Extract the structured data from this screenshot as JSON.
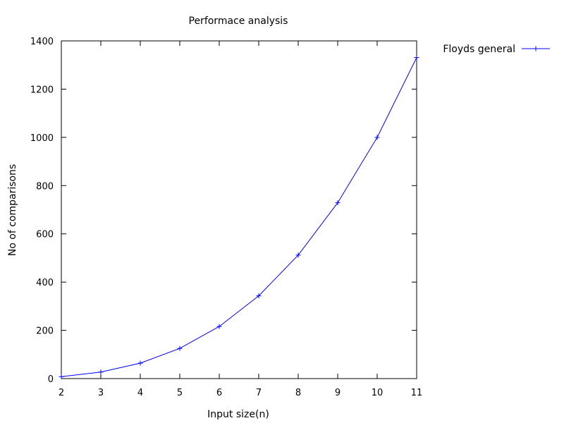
{
  "chart_data": {
    "type": "line",
    "title": "Performace analysis",
    "xlabel": "Input size(n)",
    "ylabel": "No of comparisons",
    "xlim": [
      2,
      11
    ],
    "ylim": [
      0,
      1400
    ],
    "x_ticks": [
      2,
      3,
      4,
      5,
      6,
      7,
      8,
      9,
      10,
      11
    ],
    "y_ticks": [
      0,
      200,
      400,
      600,
      800,
      1000,
      1200,
      1400
    ],
    "grid": false,
    "legend_position": "outside-top-right",
    "series": [
      {
        "name": "Floyds general",
        "color": "#0000ff",
        "marker": "plus",
        "x": [
          2,
          3,
          4,
          5,
          6,
          7,
          8,
          9,
          10,
          11
        ],
        "y": [
          8,
          27,
          64,
          125,
          216,
          343,
          512,
          729,
          1000,
          1331
        ]
      }
    ]
  }
}
